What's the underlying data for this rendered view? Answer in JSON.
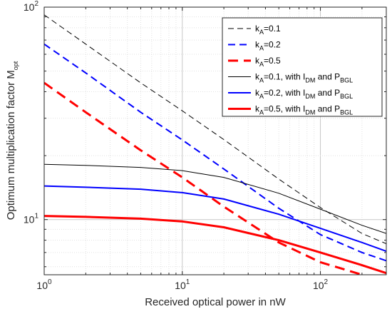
{
  "chart_data": {
    "type": "line",
    "title": "",
    "xlabel": "Received optical power in nW",
    "ylabel_main": "Optimum multiplication factor M",
    "ylabel_sub": "opt",
    "xscale": "log",
    "yscale": "log",
    "xlim": [
      1,
      300
    ],
    "ylim": [
      5.5,
      100
    ],
    "grid": true,
    "legend_position": "top-right",
    "x_tick_labels": [
      {
        "value": 1,
        "base": "10",
        "exp": "0"
      },
      {
        "value": 10,
        "base": "10",
        "exp": "1"
      },
      {
        "value": 100,
        "base": "10",
        "exp": "2"
      }
    ],
    "y_tick_labels": [
      {
        "value": 10,
        "base": "10",
        "exp": "1"
      },
      {
        "value": 100,
        "base": "10",
        "exp": "2"
      }
    ],
    "series": [
      {
        "id": "kA01",
        "legend_parts": [
          [
            "k",
            ""
          ],
          [
            "A",
            "sub"
          ],
          [
            "=0.1",
            ""
          ]
        ],
        "color": "#000000",
        "style": "dashed",
        "width": 1,
        "x": [
          1,
          2,
          5,
          10,
          20,
          50,
          100,
          200,
          300
        ],
        "y": [
          92,
          67,
          44,
          32.5,
          23.8,
          15.5,
          11.4,
          8.6,
          7.7
        ]
      },
      {
        "id": "kA02",
        "legend_parts": [
          [
            "k",
            ""
          ],
          [
            "A",
            "sub"
          ],
          [
            "=0.2",
            ""
          ]
        ],
        "color": "#0000ff",
        "style": "dashed",
        "width": 2,
        "x": [
          1,
          2,
          5,
          10,
          20,
          50,
          100,
          200,
          300
        ],
        "y": [
          67,
          49,
          32,
          23.7,
          17.3,
          11.3,
          8.5,
          7.0,
          6.4
        ]
      },
      {
        "id": "kA05",
        "legend_parts": [
          [
            "k",
            ""
          ],
          [
            "A",
            "sub"
          ],
          [
            "=0.5",
            ""
          ]
        ],
        "color": "#ff0000",
        "style": "dashed",
        "width": 3,
        "x": [
          1,
          2,
          5,
          10,
          20,
          50,
          100,
          200,
          300
        ],
        "y": [
          44,
          32,
          21.2,
          15.8,
          11.5,
          7.8,
          6.3,
          5.5,
          5.2
        ]
      },
      {
        "id": "kA01full",
        "legend_parts": [
          [
            "k",
            ""
          ],
          [
            "A",
            "sub"
          ],
          [
            "=0.1, with I",
            ""
          ],
          [
            "DM",
            "sub"
          ],
          [
            " and P",
            ""
          ],
          [
            "BGL",
            "sub"
          ]
        ],
        "color": "#000000",
        "style": "solid",
        "width": 1,
        "x": [
          1,
          2,
          5,
          10,
          20,
          50,
          100,
          200,
          300
        ],
        "y": [
          18.2,
          18.0,
          17.6,
          17.0,
          15.8,
          13.3,
          11.2,
          9.4,
          8.6
        ]
      },
      {
        "id": "kA02full",
        "legend_parts": [
          [
            "k",
            ""
          ],
          [
            "A",
            "sub"
          ],
          [
            "=0.2, with I",
            ""
          ],
          [
            "DM",
            "sub"
          ],
          [
            " and P",
            ""
          ],
          [
            "BGL",
            "sub"
          ]
        ],
        "color": "#0000ff",
        "style": "solid",
        "width": 2,
        "x": [
          1,
          2,
          5,
          10,
          20,
          50,
          100,
          200,
          300
        ],
        "y": [
          14.4,
          14.2,
          13.9,
          13.4,
          12.5,
          10.6,
          9.1,
          7.8,
          7.1
        ]
      },
      {
        "id": "kA05full",
        "legend_parts": [
          [
            "k",
            ""
          ],
          [
            "A",
            "sub"
          ],
          [
            "=0.5, with I",
            ""
          ],
          [
            "DM",
            "sub"
          ],
          [
            " and P",
            ""
          ],
          [
            "BGL",
            "sub"
          ]
        ],
        "color": "#ff0000",
        "style": "solid",
        "width": 3,
        "x": [
          1,
          2,
          5,
          10,
          20,
          50,
          100,
          200,
          300
        ],
        "y": [
          10.4,
          10.3,
          10.1,
          9.8,
          9.2,
          8.0,
          7.0,
          6.1,
          5.6
        ]
      }
    ]
  }
}
